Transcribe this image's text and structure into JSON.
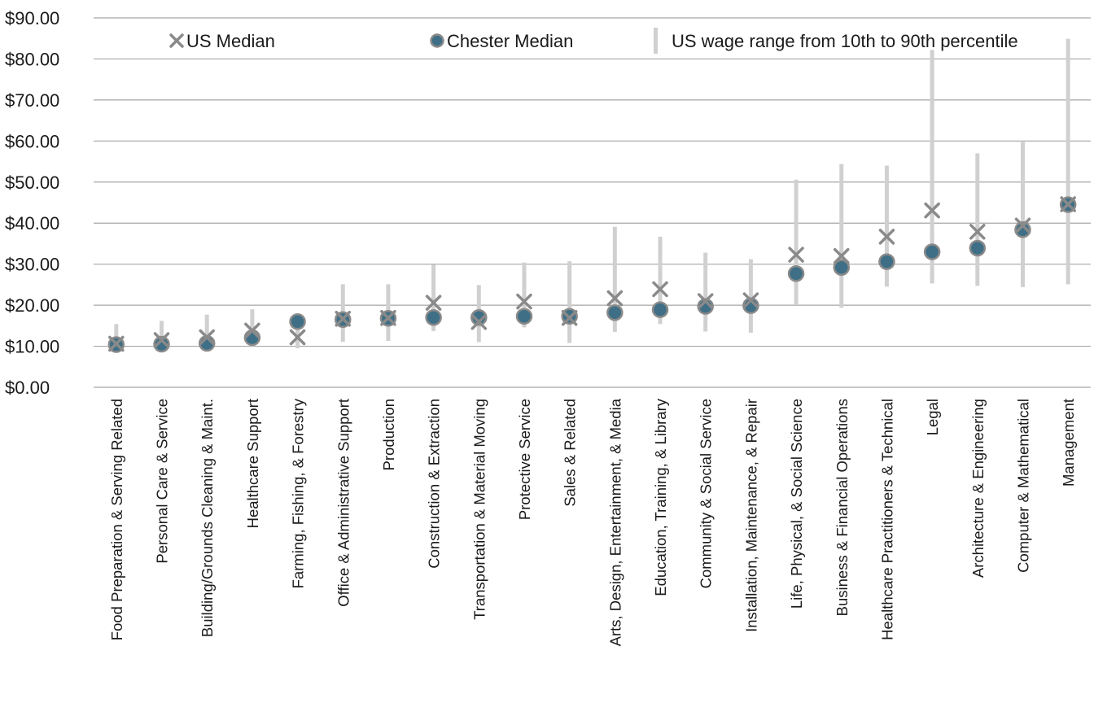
{
  "chart_data": {
    "type": "scatter",
    "title": "",
    "xlabel": "",
    "ylabel": "",
    "ylim": [
      0,
      90
    ],
    "y_ticks": [
      0,
      10,
      20,
      30,
      40,
      50,
      60,
      70,
      80,
      90
    ],
    "y_tick_labels": [
      "$0.00",
      "$10.00",
      "$20.00",
      "$30.00",
      "$40.00",
      "$50.00",
      "$60.00",
      "$70.00",
      "$80.00",
      "$90.00"
    ],
    "grid": "horizontal",
    "legend_position": "top",
    "legend": {
      "us_median": "US Median",
      "chester_median": "Chester Median",
      "us_range": "US wage range from 10th to 90th percentile"
    },
    "colors": {
      "chester_fill": "#3e6f86",
      "chester_edge": "#8a8a8a",
      "us_median": "#8a8a8a",
      "range": "#d0d0d0",
      "grid": "#a6a6a6"
    },
    "categories": [
      "Food Preparation & Serving Related",
      "Personal Care & Service",
      "Building/Grounds Cleaning & Maint.",
      "Healthcare Support",
      "Farming, Fishing, & Forestry",
      "Office & Administrative Support",
      "Production",
      "Construction & Extraction",
      "Transportation & Material Moving",
      "Protective Service",
      "Sales & Related",
      "Arts, Design, Entertainment, & Media",
      "Education, Training, & Library",
      "Community & Social Service",
      "Installation, Maintenance, & Repair",
      "Life, Physical, & Social Science",
      "Business & Financial Operations",
      "Healthcare Practitioners & Technical",
      "Legal",
      "Architecture & Engineering",
      "Computer & Mathematical",
      "Management"
    ],
    "series": [
      {
        "name": "US Median",
        "values": [
          10.6,
          11.5,
          12.2,
          13.8,
          12.2,
          16.7,
          16.9,
          20.6,
          15.9,
          20.9,
          16.9,
          21.7,
          23.9,
          21.0,
          21.2,
          32.3,
          32.0,
          36.7,
          43.1,
          37.9,
          39.4,
          44.6
        ]
      },
      {
        "name": "Chester Median",
        "values": [
          10.4,
          10.5,
          10.7,
          12.1,
          16.0,
          16.5,
          16.8,
          17.0,
          17.0,
          17.3,
          17.3,
          18.2,
          18.9,
          19.7,
          19.9,
          27.7,
          29.2,
          30.6,
          33.0,
          33.9,
          38.4,
          44.5
        ]
      },
      {
        "name": "US wage range from 10th to 90th percentile",
        "low": [
          9.0,
          9.0,
          9.2,
          10.0,
          9.5,
          11.1,
          11.3,
          13.7,
          11.0,
          14.6,
          10.8,
          13.5,
          15.4,
          13.6,
          13.3,
          20.2,
          19.4,
          24.5,
          25.3,
          24.7,
          24.4,
          25.1
        ],
        "high": [
          15.4,
          16.2,
          17.7,
          19.0,
          16.2,
          25.1,
          25.1,
          29.9,
          24.9,
          30.4,
          30.7,
          39.1,
          36.7,
          32.8,
          31.2,
          50.6,
          54.4,
          54.0,
          82.2,
          57.0,
          59.8,
          84.9
        ]
      }
    ]
  }
}
